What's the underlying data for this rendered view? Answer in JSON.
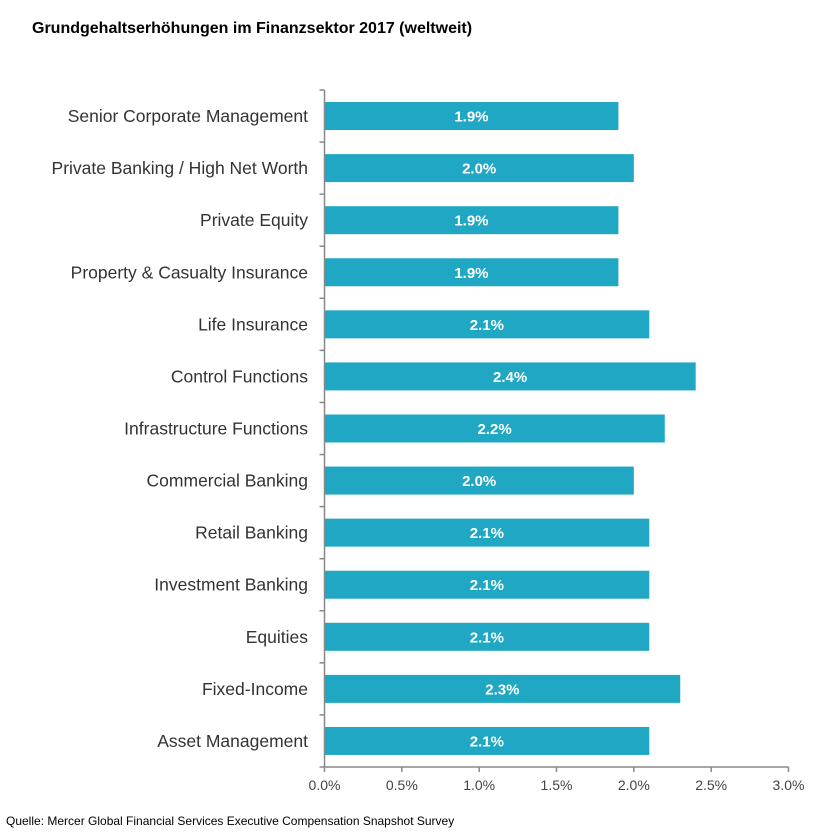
{
  "chart_data": {
    "type": "bar",
    "orientation": "horizontal",
    "title": "Grundgehaltserhöhungen im Finanzsektor 2017 (weltweit)",
    "source": "Quelle: Mercer Global Financial Services Executive Compensation Snapshot Survey",
    "categories": [
      "Senior Corporate Management",
      "Private Banking / High Net Worth",
      "Private Equity",
      "Property & Casualty Insurance",
      "Life Insurance",
      "Control Functions",
      "Infrastructure Functions",
      "Commercial Banking",
      "Retail Banking",
      "Investment Banking",
      "Equities",
      "Fixed-Income",
      "Asset Management"
    ],
    "values": [
      1.9,
      2.0,
      1.9,
      1.9,
      2.1,
      2.4,
      2.2,
      2.0,
      2.1,
      2.1,
      2.1,
      2.3,
      2.1
    ],
    "data_labels": [
      "1.9%",
      "2.0%",
      "1.9%",
      "1.9%",
      "2.1%",
      "2.4%",
      "2.2%",
      "2.0%",
      "2.1%",
      "2.1%",
      "2.1%",
      "2.3%",
      "2.1%"
    ],
    "xlim": [
      0,
      3.0
    ],
    "xticks": [
      0,
      0.5,
      1.0,
      1.5,
      2.0,
      2.5,
      3.0
    ],
    "xtick_labels": [
      "0.0%",
      "0.5%",
      "1.0%",
      "1.5%",
      "2.0%",
      "2.5%",
      "3.0%"
    ],
    "xlabel": "",
    "ylabel": "",
    "grid": false,
    "bar_color": "#1fa7c3",
    "axis_color": "#888888"
  }
}
